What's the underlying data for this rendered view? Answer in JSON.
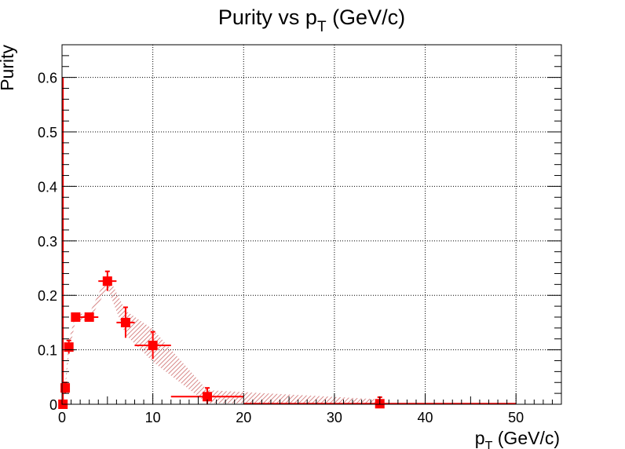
{
  "chart_data": {
    "type": "scatter",
    "title": {
      "main": "Purity vs p",
      "sub": "T",
      "suffix": " (GeV/c)"
    },
    "xlabel": {
      "main": "p",
      "sub": "T",
      "suffix": " (GeV/c)"
    },
    "ylabel": "Purity",
    "xlim": [
      0,
      55
    ],
    "ylim": [
      0,
      0.66
    ],
    "x_ticks": [
      0,
      10,
      20,
      30,
      40,
      50
    ],
    "x_tick_labels": [
      "0",
      "10",
      "20",
      "30",
      "40",
      "50"
    ],
    "y_ticks": [
      0,
      0.1,
      0.2,
      0.3,
      0.4,
      0.5,
      0.6
    ],
    "y_tick_labels": [
      "0",
      "0.1",
      "0.2",
      "0.3",
      "0.4",
      "0.5",
      "0.6"
    ],
    "grid": true,
    "marker_color": "#ff0000",
    "band_color": "#c85a5a",
    "series": [
      {
        "points": [
          {
            "x": 0.1,
            "y": 0.0,
            "xerr": 0.1,
            "yerr": 0.0,
            "syst": 0.0
          },
          {
            "x": 0.35,
            "y": 0.03,
            "xerr": 0.15,
            "yerr": 0.01,
            "syst": 0.006
          },
          {
            "x": 0.75,
            "y": 0.105,
            "xerr": 0.25,
            "yerr": 0.012,
            "syst": 0.012
          },
          {
            "x": 1.5,
            "y": 0.16,
            "xerr": 0.5,
            "yerr": 0.005,
            "syst": 0.006
          },
          {
            "x": 3.0,
            "y": 0.16,
            "xerr": 1.0,
            "yerr": 0.004,
            "syst": 0.006
          },
          {
            "x": 5.0,
            "y": 0.226,
            "xerr": 1.0,
            "yerr": 0.018,
            "syst": 0.012
          },
          {
            "x": 7.0,
            "y": 0.15,
            "xerr": 1.0,
            "yerr": 0.028,
            "syst": 0.022
          },
          {
            "x": 10.0,
            "y": 0.108,
            "xerr": 2.0,
            "yerr": 0.025,
            "syst": 0.03
          },
          {
            "x": 16.0,
            "y": 0.014,
            "xerr": 4.0,
            "yerr": 0.016,
            "syst": 0.012
          },
          {
            "x": 35.0,
            "y": 0.001,
            "xerr": 15.0,
            "yerr": 0.012,
            "syst": 0.008
          }
        ]
      }
    ]
  }
}
